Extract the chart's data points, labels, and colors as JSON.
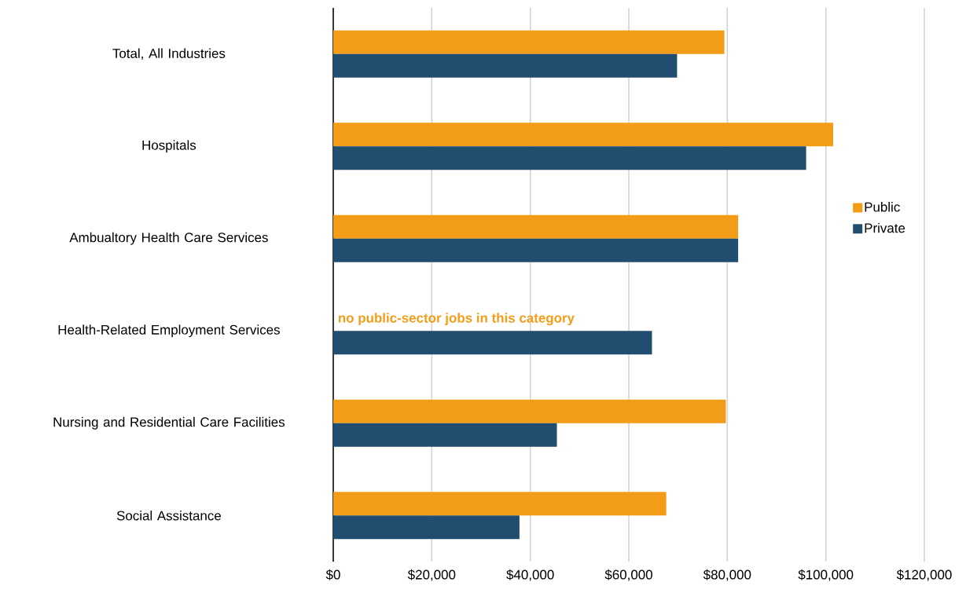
{
  "chart_data": {
    "type": "bar",
    "orientation": "horizontal",
    "categories": [
      "Total, All Industries",
      "Hospitals",
      "Ambualtory Health Care Services",
      "Health-Related Employment Services",
      "Nursing and Residential Care Facilities",
      "Social Assistance"
    ],
    "series": [
      {
        "name": "Public",
        "color": "#f39c18",
        "values": [
          79400,
          101500,
          82200,
          null,
          79700,
          67600
        ]
      },
      {
        "name": "Private",
        "color": "#214e6e",
        "values": [
          69800,
          96000,
          82200,
          64700,
          45400,
          37800
        ]
      }
    ],
    "xlim": [
      0,
      120000
    ],
    "xticks": [
      {
        "value": 0,
        "label": "$0"
      },
      {
        "value": 20000,
        "label": "$20,000"
      },
      {
        "value": 40000,
        "label": "$40,000"
      },
      {
        "value": 60000,
        "label": "$60,000"
      },
      {
        "value": 80000,
        "label": "$80,000"
      },
      {
        "value": 100000,
        "label": "$100,000"
      },
      {
        "value": 120000,
        "label": "$120,000"
      }
    ],
    "grid": "x",
    "legend": "right",
    "annotations": [
      "no public-sector jobs in this category"
    ]
  }
}
